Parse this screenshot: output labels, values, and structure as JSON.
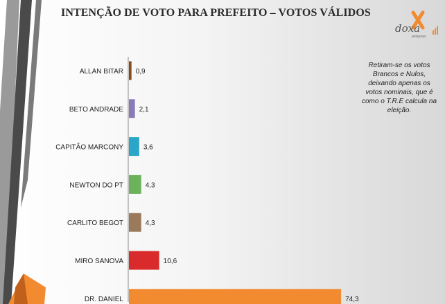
{
  "header": {
    "title": "INTENÇÃO DE VOTO PARA PREFEITO – VOTOS VÁLIDOS"
  },
  "logo": {
    "name": "doxa",
    "sub": "pesquisa"
  },
  "note": {
    "text": "Retiram-se os votos Brancos e Nulos, deixando apenas os votos nominais, que é como o T.R.E calcula na eleição."
  },
  "chart_data": {
    "type": "bar",
    "orientation": "horizontal",
    "categories": [
      "ALLAN BITAR",
      "BETO ANDRADE",
      "CAPITÃO MARCONY",
      "NEWTON DO PT",
      "CARLITO BEGOT",
      "MIRO SANOVA",
      "DR. DANIEL"
    ],
    "values": [
      0.9,
      2.1,
      3.6,
      4.3,
      4.3,
      10.6,
      74.3
    ],
    "value_labels": [
      "0,9",
      "2,1",
      "3,6",
      "4,3",
      "4,3",
      "10,6",
      "74,3"
    ],
    "colors": [
      "#8a4a1e",
      "#8a7ab8",
      "#2aa6c8",
      "#6bb25a",
      "#9a7a5a",
      "#d92b2b",
      "#f28a30"
    ],
    "xlim": [
      0,
      100
    ],
    "grid": false,
    "legend": "none"
  }
}
